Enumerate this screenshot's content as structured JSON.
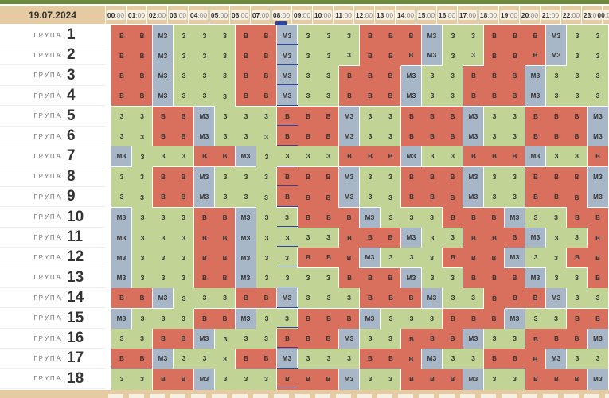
{
  "date": "19.07.2024",
  "group_label": "ГРУПА",
  "hours": [
    {
      "h": "00",
      "m": "00"
    },
    {
      "h": "01",
      "m": "00"
    },
    {
      "h": "02",
      "m": "00"
    },
    {
      "h": "03",
      "m": "00"
    },
    {
      "h": "04",
      "m": "00"
    },
    {
      "h": "05",
      "m": "00"
    },
    {
      "h": "06",
      "m": "00"
    },
    {
      "h": "07",
      "m": "00"
    },
    {
      "h": "08",
      "m": "00"
    },
    {
      "h": "09",
      "m": "00"
    },
    {
      "h": "10",
      "m": "00"
    },
    {
      "h": "11",
      "m": "00"
    },
    {
      "h": "12",
      "m": "00"
    },
    {
      "h": "13",
      "m": "00"
    },
    {
      "h": "14",
      "m": "00"
    },
    {
      "h": "15",
      "m": "00"
    },
    {
      "h": "16",
      "m": "00"
    },
    {
      "h": "17",
      "m": "00"
    },
    {
      "h": "18",
      "m": "00"
    },
    {
      "h": "19",
      "m": "00"
    },
    {
      "h": "20",
      "m": "00"
    },
    {
      "h": "21",
      "m": "00"
    },
    {
      "h": "22",
      "m": "00"
    },
    {
      "h": "23",
      "m": "00"
    },
    {
      "h": "00",
      "m": "00"
    }
  ],
  "current_hour_index": 8,
  "status_labels": {
    "B": "В",
    "Z": "З",
    "M": "МЗ"
  },
  "status_colors": {
    "B": "#d96f5d",
    "Z": "#c2d495",
    "M": "#a8b7c7"
  },
  "groups": [
    {
      "number": "1",
      "slots": "BBMZZZBBMZZZBBBMZZBBBMZZ"
    },
    {
      "number": "2",
      "slots": "BBMZZZBBMZZZBBBMZZBBBMZZ"
    },
    {
      "number": "3",
      "slots": "BBMZZZBBMZZBBBMZZBBBMZZZ"
    },
    {
      "number": "4",
      "slots": "BBMZZZBBMZZBBBMZZBBBMZZZ"
    },
    {
      "number": "5",
      "slots": "ZZBBMZZZBBBMZZBBBMZZBBBM"
    },
    {
      "number": "6",
      "slots": "ZZBBMZZZBBBMZZBBBMZZBBBM"
    },
    {
      "number": "7",
      "slots": "MZZZBBMZZZZBBBMZZBBBMZZB"
    },
    {
      "number": "8",
      "slots": "ZZBBMZZZBBBMZZBBBMZZBBBM"
    },
    {
      "number": "9",
      "slots": "ZZBBMZZZBBBMZZBBBMZZBBBM"
    },
    {
      "number": "10",
      "slots": "MZZZBBMZZBBBMZZZBBBMZZBB"
    },
    {
      "number": "11",
      "slots": "MZZZBBMZZZZBBBMZZBBBMZZB"
    },
    {
      "number": "12",
      "slots": "MZZZBBMZZBBBMZZZBBBMZZBB"
    },
    {
      "number": "13",
      "slots": "MZZZBBMZZZZBBBMZZBBBMZZB"
    },
    {
      "number": "14",
      "slots": "BBMZZZBBMZZZBBBMZZBBBMZZ"
    },
    {
      "number": "15",
      "slots": "MZZZBBMZZBBBMZZZBBBMZZBB"
    },
    {
      "number": "16",
      "slots": "ZZBBMZZZBBBMZZBBBMZZBBBM"
    },
    {
      "number": "17",
      "slots": "BBMZZZBBMZZZBBBMZZBBBMZZ"
    },
    {
      "number": "18",
      "slots": "ZZBBMZZZBBBMZZBBBMZZBBBM"
    }
  ]
}
